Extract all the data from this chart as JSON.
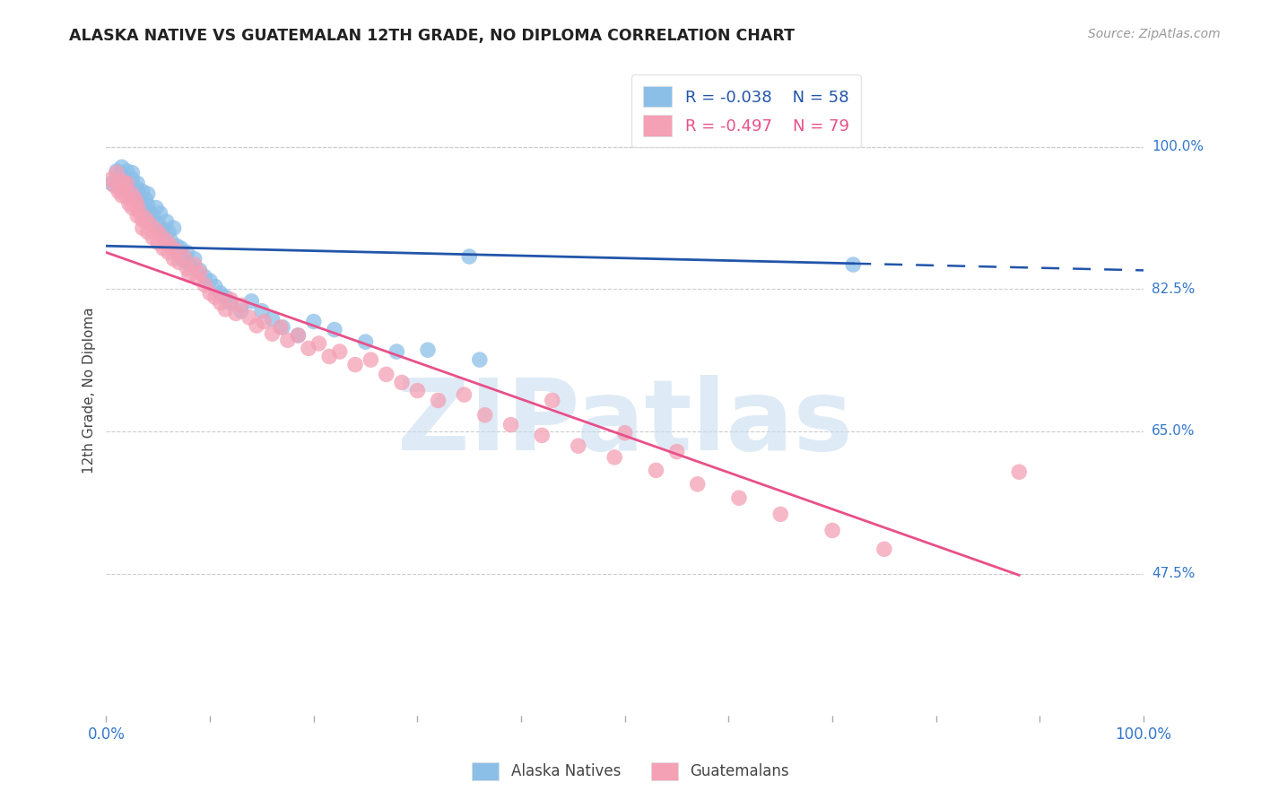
{
  "title": "ALASKA NATIVE VS GUATEMALAN 12TH GRADE, NO DIPLOMA CORRELATION CHART",
  "source": "Source: ZipAtlas.com",
  "ylabel": "12th Grade, No Diploma",
  "ytick_labels": [
    "100.0%",
    "82.5%",
    "65.0%",
    "47.5%"
  ],
  "ytick_values": [
    1.0,
    0.825,
    0.65,
    0.475
  ],
  "xlim": [
    0.0,
    1.0
  ],
  "ylim": [
    0.3,
    1.1
  ],
  "alaska_R": "-0.038",
  "alaska_N": "58",
  "guatemalan_R": "-0.497",
  "guatemalan_N": "79",
  "alaska_color": "#8bbfe8",
  "guatemalan_color": "#f4a0b5",
  "alaska_line_color": "#2255aa",
  "guatemalan_line_color": "#e8508a",
  "legend_label_alaska": "Alaska Natives",
  "legend_label_guatemalan": "Guatemalans",
  "watermark": "ZIPatlas",
  "watermark_color": "#c8dff0",
  "alaska_line_x0": 0.0,
  "alaska_line_y0": 0.878,
  "alaska_line_x1": 1.0,
  "alaska_line_y1": 0.848,
  "alaska_line_solid_end": 0.72,
  "guatemalan_line_x0": 0.0,
  "guatemalan_line_y0": 0.87,
  "guatemalan_line_x1": 0.88,
  "guatemalan_line_y1": 0.473,
  "alaska_scatter_x": [
    0.005,
    0.01,
    0.012,
    0.015,
    0.015,
    0.018,
    0.02,
    0.02,
    0.022,
    0.025,
    0.025,
    0.028,
    0.03,
    0.03,
    0.032,
    0.035,
    0.035,
    0.038,
    0.04,
    0.04,
    0.042,
    0.045,
    0.048,
    0.05,
    0.052,
    0.055,
    0.058,
    0.06,
    0.062,
    0.065,
    0.068,
    0.07,
    0.072,
    0.075,
    0.078,
    0.08,
    0.085,
    0.09,
    0.095,
    0.1,
    0.105,
    0.11,
    0.115,
    0.12,
    0.13,
    0.14,
    0.15,
    0.16,
    0.17,
    0.185,
    0.2,
    0.22,
    0.25,
    0.28,
    0.31,
    0.35,
    0.36,
    0.72
  ],
  "alaska_scatter_y": [
    0.955,
    0.97,
    0.96,
    0.975,
    0.965,
    0.958,
    0.95,
    0.97,
    0.945,
    0.96,
    0.968,
    0.942,
    0.955,
    0.948,
    0.938,
    0.93,
    0.945,
    0.935,
    0.928,
    0.942,
    0.92,
    0.915,
    0.925,
    0.905,
    0.918,
    0.898,
    0.908,
    0.895,
    0.885,
    0.9,
    0.878,
    0.868,
    0.875,
    0.86,
    0.87,
    0.855,
    0.862,
    0.848,
    0.84,
    0.835,
    0.828,
    0.82,
    0.815,
    0.808,
    0.798,
    0.81,
    0.798,
    0.788,
    0.778,
    0.768,
    0.785,
    0.775,
    0.76,
    0.748,
    0.75,
    0.865,
    0.738,
    0.855
  ],
  "guatemalan_scatter_x": [
    0.005,
    0.008,
    0.01,
    0.012,
    0.015,
    0.015,
    0.018,
    0.02,
    0.02,
    0.022,
    0.025,
    0.025,
    0.028,
    0.03,
    0.03,
    0.032,
    0.035,
    0.035,
    0.038,
    0.04,
    0.042,
    0.045,
    0.048,
    0.05,
    0.052,
    0.055,
    0.058,
    0.06,
    0.062,
    0.065,
    0.068,
    0.07,
    0.075,
    0.078,
    0.08,
    0.085,
    0.088,
    0.09,
    0.095,
    0.1,
    0.105,
    0.11,
    0.115,
    0.12,
    0.125,
    0.13,
    0.138,
    0.145,
    0.152,
    0.16,
    0.168,
    0.175,
    0.185,
    0.195,
    0.205,
    0.215,
    0.225,
    0.24,
    0.255,
    0.27,
    0.285,
    0.3,
    0.32,
    0.345,
    0.365,
    0.39,
    0.42,
    0.455,
    0.49,
    0.53,
    0.57,
    0.61,
    0.65,
    0.7,
    0.75,
    0.5,
    0.55,
    0.43,
    0.88
  ],
  "guatemalan_scatter_y": [
    0.96,
    0.952,
    0.968,
    0.945,
    0.958,
    0.94,
    0.948,
    0.938,
    0.955,
    0.93,
    0.942,
    0.925,
    0.935,
    0.928,
    0.915,
    0.92,
    0.91,
    0.9,
    0.912,
    0.895,
    0.905,
    0.888,
    0.898,
    0.882,
    0.892,
    0.875,
    0.885,
    0.87,
    0.878,
    0.862,
    0.872,
    0.858,
    0.865,
    0.85,
    0.842,
    0.855,
    0.838,
    0.845,
    0.83,
    0.82,
    0.815,
    0.808,
    0.8,
    0.812,
    0.795,
    0.805,
    0.79,
    0.78,
    0.785,
    0.77,
    0.778,
    0.762,
    0.768,
    0.752,
    0.758,
    0.742,
    0.748,
    0.732,
    0.738,
    0.72,
    0.71,
    0.7,
    0.688,
    0.695,
    0.67,
    0.658,
    0.645,
    0.632,
    0.618,
    0.602,
    0.585,
    0.568,
    0.548,
    0.528,
    0.505,
    0.648,
    0.625,
    0.688,
    0.6
  ]
}
